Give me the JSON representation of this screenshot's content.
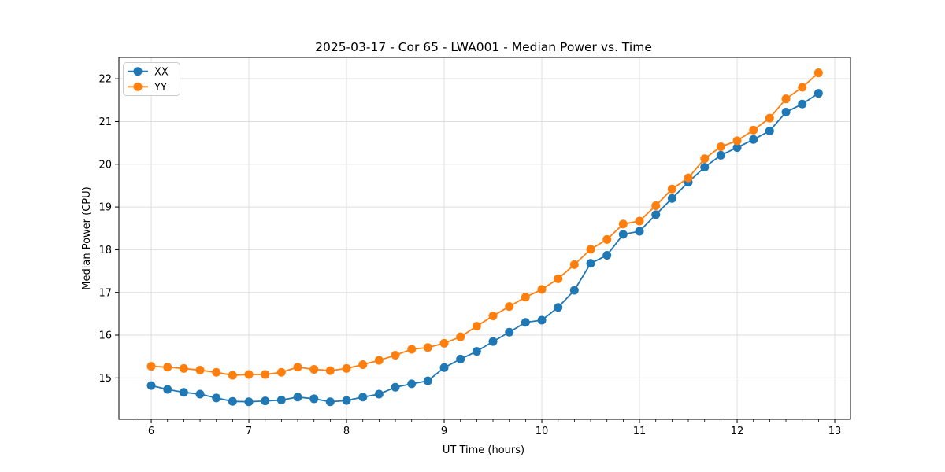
{
  "chart_data": {
    "type": "line",
    "title": "2025-03-17 - Cor 65 - LWA001 - Median Power vs. Time",
    "xlabel": "UT Time (hours)",
    "ylabel": "Median Power (CPU)",
    "xlim": [
      5.669,
      13.161
    ],
    "ylim": [
      14.03,
      22.5
    ],
    "xticks": [
      6,
      7,
      8,
      9,
      10,
      11,
      12,
      13
    ],
    "yticks": [
      15,
      16,
      17,
      18,
      19,
      20,
      21,
      22
    ],
    "minor_ticks_per_hour": 6,
    "grid": true,
    "legend_position": "upper left",
    "x": [
      6.0,
      6.167,
      6.333,
      6.5,
      6.667,
      6.833,
      7.0,
      7.167,
      7.333,
      7.5,
      7.667,
      7.833,
      8.0,
      8.167,
      8.333,
      8.5,
      8.667,
      8.833,
      9.0,
      9.167,
      9.333,
      9.5,
      9.667,
      9.833,
      10.0,
      10.167,
      10.333,
      10.5,
      10.667,
      10.833,
      11.0,
      11.167,
      11.333,
      11.5,
      11.667,
      11.833,
      12.0,
      12.167,
      12.333,
      12.5,
      12.667,
      12.833
    ],
    "series": [
      {
        "name": "XX",
        "color": "#1f77b4",
        "values": [
          14.82,
          14.73,
          14.66,
          14.62,
          14.53,
          14.45,
          14.44,
          14.46,
          14.48,
          14.55,
          14.51,
          14.44,
          14.47,
          14.55,
          14.62,
          14.78,
          14.86,
          14.93,
          15.24,
          15.44,
          15.62,
          15.85,
          16.07,
          16.3,
          16.35,
          16.65,
          17.05,
          17.68,
          17.87,
          18.36,
          18.43,
          18.82,
          19.2,
          19.58,
          19.93,
          20.21,
          20.39,
          20.58,
          20.78,
          21.22,
          21.41,
          21.66
        ]
      },
      {
        "name": "YY",
        "color": "#ff7f0e",
        "values": [
          15.27,
          15.25,
          15.22,
          15.18,
          15.13,
          15.06,
          15.08,
          15.08,
          15.13,
          15.25,
          15.2,
          15.17,
          15.22,
          15.31,
          15.41,
          15.53,
          15.67,
          15.71,
          15.81,
          15.96,
          16.21,
          16.45,
          16.67,
          16.89,
          17.07,
          17.32,
          17.65,
          18.01,
          18.24,
          18.6,
          18.67,
          19.03,
          19.42,
          19.68,
          20.13,
          20.41,
          20.55,
          20.8,
          21.08,
          21.53,
          21.8,
          22.14
        ]
      }
    ],
    "style": {
      "grid_color": "#dedede",
      "spine_color": "#000000",
      "background": "#ffffff",
      "legend_border": "#cccccc"
    }
  }
}
